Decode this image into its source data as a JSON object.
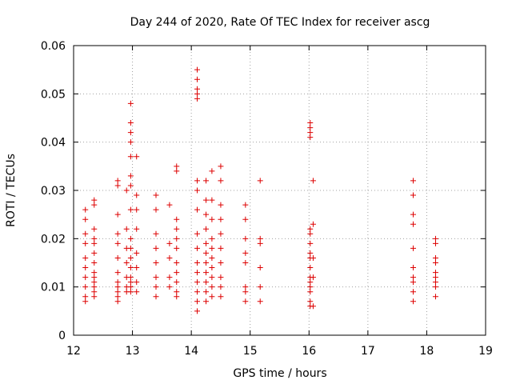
{
  "chart_data": {
    "type": "scatter",
    "title": "Day 244 of 2020, Rate Of TEC Index for receiver ascg",
    "xlabel": "GPS time / hours",
    "ylabel": "ROTI / TECUs",
    "xlim": [
      12,
      19
    ],
    "ylim": [
      0,
      0.06
    ],
    "xticks": [
      "12",
      "13",
      "14",
      "15",
      "16",
      "17",
      "18",
      "19"
    ],
    "yticks": [
      "0",
      "0.01",
      "0.02",
      "0.03",
      "0.04",
      "0.05",
      "0.06"
    ],
    "grid": true,
    "marker": "plus",
    "color": "#dd0000",
    "points": [
      [
        12.2,
        0.026
      ],
      [
        12.2,
        0.024
      ],
      [
        12.2,
        0.021
      ],
      [
        12.2,
        0.019
      ],
      [
        12.2,
        0.016
      ],
      [
        12.2,
        0.014
      ],
      [
        12.2,
        0.012
      ],
      [
        12.2,
        0.01
      ],
      [
        12.2,
        0.008
      ],
      [
        12.2,
        0.007
      ],
      [
        12.35,
        0.028
      ],
      [
        12.35,
        0.027
      ],
      [
        12.35,
        0.022
      ],
      [
        12.35,
        0.02
      ],
      [
        12.35,
        0.019
      ],
      [
        12.35,
        0.017
      ],
      [
        12.35,
        0.015
      ],
      [
        12.35,
        0.013
      ],
      [
        12.35,
        0.012
      ],
      [
        12.35,
        0.011
      ],
      [
        12.35,
        0.01
      ],
      [
        12.35,
        0.009
      ],
      [
        12.35,
        0.008
      ],
      [
        12.75,
        0.032
      ],
      [
        12.75,
        0.031
      ],
      [
        12.75,
        0.025
      ],
      [
        12.75,
        0.021
      ],
      [
        12.75,
        0.019
      ],
      [
        12.75,
        0.016
      ],
      [
        12.75,
        0.013
      ],
      [
        12.75,
        0.011
      ],
      [
        12.75,
        0.01
      ],
      [
        12.75,
        0.009
      ],
      [
        12.75,
        0.008
      ],
      [
        12.75,
        0.007
      ],
      [
        12.9,
        0.03
      ],
      [
        12.9,
        0.022
      ],
      [
        12.9,
        0.018
      ],
      [
        12.9,
        0.015
      ],
      [
        12.9,
        0.012
      ],
      [
        12.9,
        0.01
      ],
      [
        12.9,
        0.009
      ],
      [
        12.97,
        0.048
      ],
      [
        12.97,
        0.044
      ],
      [
        12.97,
        0.042
      ],
      [
        12.97,
        0.04
      ],
      [
        12.97,
        0.037
      ],
      [
        12.97,
        0.033
      ],
      [
        12.97,
        0.031
      ],
      [
        12.97,
        0.026
      ],
      [
        12.97,
        0.02
      ],
      [
        12.97,
        0.018
      ],
      [
        12.97,
        0.016
      ],
      [
        12.97,
        0.014
      ],
      [
        12.97,
        0.012
      ],
      [
        12.97,
        0.011
      ],
      [
        12.97,
        0.01
      ],
      [
        12.97,
        0.009
      ],
      [
        13.07,
        0.037
      ],
      [
        13.07,
        0.029
      ],
      [
        13.07,
        0.026
      ],
      [
        13.07,
        0.022
      ],
      [
        13.07,
        0.017
      ],
      [
        13.07,
        0.014
      ],
      [
        13.07,
        0.011
      ],
      [
        13.07,
        0.009
      ],
      [
        13.4,
        0.029
      ],
      [
        13.4,
        0.026
      ],
      [
        13.4,
        0.021
      ],
      [
        13.4,
        0.018
      ],
      [
        13.4,
        0.015
      ],
      [
        13.4,
        0.012
      ],
      [
        13.4,
        0.01
      ],
      [
        13.4,
        0.008
      ],
      [
        13.63,
        0.027
      ],
      [
        13.63,
        0.019
      ],
      [
        13.63,
        0.016
      ],
      [
        13.63,
        0.012
      ],
      [
        13.63,
        0.01
      ],
      [
        13.75,
        0.035
      ],
      [
        13.75,
        0.034
      ],
      [
        13.75,
        0.024
      ],
      [
        13.75,
        0.022
      ],
      [
        13.75,
        0.02
      ],
      [
        13.75,
        0.018
      ],
      [
        13.75,
        0.015
      ],
      [
        13.75,
        0.013
      ],
      [
        13.75,
        0.011
      ],
      [
        13.75,
        0.009
      ],
      [
        13.75,
        0.008
      ],
      [
        14.1,
        0.055
      ],
      [
        14.1,
        0.053
      ],
      [
        14.1,
        0.051
      ],
      [
        14.1,
        0.05
      ],
      [
        14.1,
        0.049
      ],
      [
        14.1,
        0.032
      ],
      [
        14.1,
        0.03
      ],
      [
        14.1,
        0.026
      ],
      [
        14.1,
        0.021
      ],
      [
        14.1,
        0.018
      ],
      [
        14.1,
        0.015
      ],
      [
        14.1,
        0.013
      ],
      [
        14.1,
        0.011
      ],
      [
        14.1,
        0.009
      ],
      [
        14.1,
        0.007
      ],
      [
        14.1,
        0.005
      ],
      [
        14.25,
        0.032
      ],
      [
        14.25,
        0.028
      ],
      [
        14.25,
        0.025
      ],
      [
        14.25,
        0.022
      ],
      [
        14.25,
        0.019
      ],
      [
        14.25,
        0.017
      ],
      [
        14.25,
        0.015
      ],
      [
        14.25,
        0.013
      ],
      [
        14.25,
        0.011
      ],
      [
        14.25,
        0.009
      ],
      [
        14.25,
        0.007
      ],
      [
        14.35,
        0.034
      ],
      [
        14.35,
        0.028
      ],
      [
        14.35,
        0.024
      ],
      [
        14.35,
        0.02
      ],
      [
        14.35,
        0.018
      ],
      [
        14.35,
        0.016
      ],
      [
        14.35,
        0.014
      ],
      [
        14.35,
        0.012
      ],
      [
        14.35,
        0.01
      ],
      [
        14.35,
        0.008
      ],
      [
        14.5,
        0.035
      ],
      [
        14.5,
        0.032
      ],
      [
        14.5,
        0.027
      ],
      [
        14.5,
        0.024
      ],
      [
        14.5,
        0.021
      ],
      [
        14.5,
        0.018
      ],
      [
        14.5,
        0.015
      ],
      [
        14.5,
        0.012
      ],
      [
        14.5,
        0.01
      ],
      [
        14.5,
        0.008
      ],
      [
        14.92,
        0.027
      ],
      [
        14.92,
        0.024
      ],
      [
        14.92,
        0.02
      ],
      [
        14.92,
        0.017
      ],
      [
        14.92,
        0.015
      ],
      [
        14.92,
        0.01
      ],
      [
        14.92,
        0.009
      ],
      [
        14.92,
        0.007
      ],
      [
        15.17,
        0.032
      ],
      [
        15.17,
        0.02
      ],
      [
        15.17,
        0.019
      ],
      [
        15.17,
        0.014
      ],
      [
        15.17,
        0.01
      ],
      [
        15.17,
        0.007
      ],
      [
        16.02,
        0.044
      ],
      [
        16.02,
        0.043
      ],
      [
        16.02,
        0.042
      ],
      [
        16.02,
        0.041
      ],
      [
        16.02,
        0.022
      ],
      [
        16.02,
        0.021
      ],
      [
        16.02,
        0.019
      ],
      [
        16.02,
        0.017
      ],
      [
        16.02,
        0.016
      ],
      [
        16.02,
        0.014
      ],
      [
        16.02,
        0.012
      ],
      [
        16.02,
        0.011
      ],
      [
        16.02,
        0.01
      ],
      [
        16.02,
        0.009
      ],
      [
        16.02,
        0.007
      ],
      [
        16.02,
        0.006
      ],
      [
        16.07,
        0.032
      ],
      [
        16.07,
        0.023
      ],
      [
        16.07,
        0.016
      ],
      [
        16.07,
        0.012
      ],
      [
        16.07,
        0.006
      ],
      [
        17.77,
        0.032
      ],
      [
        17.77,
        0.029
      ],
      [
        17.77,
        0.025
      ],
      [
        17.77,
        0.023
      ],
      [
        17.77,
        0.018
      ],
      [
        17.77,
        0.014
      ],
      [
        17.77,
        0.012
      ],
      [
        17.77,
        0.011
      ],
      [
        17.77,
        0.009
      ],
      [
        17.77,
        0.007
      ],
      [
        18.15,
        0.02
      ],
      [
        18.15,
        0.019
      ],
      [
        18.15,
        0.016
      ],
      [
        18.15,
        0.015
      ],
      [
        18.15,
        0.013
      ],
      [
        18.15,
        0.012
      ],
      [
        18.15,
        0.011
      ],
      [
        18.15,
        0.01
      ],
      [
        18.15,
        0.008
      ]
    ]
  }
}
